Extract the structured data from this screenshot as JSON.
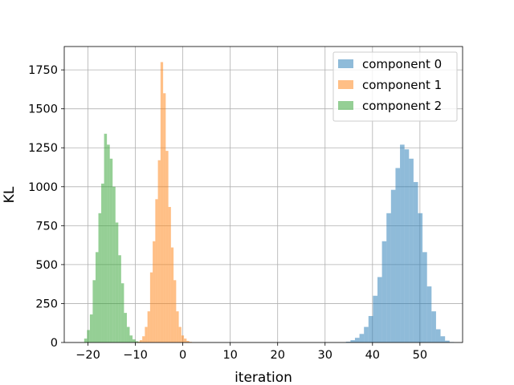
{
  "chart_data": {
    "type": "bar",
    "title": "",
    "xlabel": "iteration",
    "ylabel": "KL",
    "xlim": [
      -25,
      59
    ],
    "ylim": [
      0,
      1900
    ],
    "xticks": [
      -20,
      -10,
      0,
      10,
      20,
      30,
      40,
      50
    ],
    "xtick_labels": [
      "−20",
      "−10",
      "0",
      "10",
      "20",
      "30",
      "40",
      "50"
    ],
    "yticks": [
      0,
      250,
      500,
      750,
      1000,
      1250,
      1500,
      1750
    ],
    "ytick_labels": [
      "0",
      "250",
      "500",
      "750",
      "1000",
      "1250",
      "1500",
      "1750"
    ],
    "grid": true,
    "legend_placement": "top-right",
    "series": [
      {
        "name": "component 0",
        "color": "#1f77b4",
        "alpha": 0.5,
        "bin_width": 0.95,
        "bins": [
          [
            34.4,
            5
          ],
          [
            35.35,
            15
          ],
          [
            36.3,
            30
          ],
          [
            37.25,
            55
          ],
          [
            38.2,
            100
          ],
          [
            39.15,
            170
          ],
          [
            40.1,
            300
          ],
          [
            41.05,
            420
          ],
          [
            42.0,
            650
          ],
          [
            42.95,
            830
          ],
          [
            43.9,
            980
          ],
          [
            44.85,
            1120
          ],
          [
            45.8,
            1270
          ],
          [
            46.75,
            1240
          ],
          [
            47.7,
            1180
          ],
          [
            48.65,
            1030
          ],
          [
            49.6,
            830
          ],
          [
            50.55,
            580
          ],
          [
            51.5,
            360
          ],
          [
            52.45,
            200
          ],
          [
            53.4,
            85
          ],
          [
            54.35,
            40
          ],
          [
            55.3,
            12
          ],
          [
            56.25,
            3
          ]
        ]
      },
      {
        "name": "component 1",
        "color": "#ff7f0e",
        "alpha": 0.5,
        "bin_width": 0.55,
        "bins": [
          [
            -10.2,
            2
          ],
          [
            -9.65,
            5
          ],
          [
            -9.1,
            15
          ],
          [
            -8.55,
            40
          ],
          [
            -8.0,
            100
          ],
          [
            -7.45,
            200
          ],
          [
            -6.9,
            450
          ],
          [
            -6.35,
            650
          ],
          [
            -5.8,
            920
          ],
          [
            -5.25,
            1170
          ],
          [
            -4.7,
            1800
          ],
          [
            -4.15,
            1600
          ],
          [
            -3.6,
            1230
          ],
          [
            -3.05,
            870
          ],
          [
            -2.5,
            610
          ],
          [
            -1.95,
            400
          ],
          [
            -1.4,
            200
          ],
          [
            -0.85,
            100
          ],
          [
            -0.3,
            45
          ],
          [
            0.25,
            25
          ],
          [
            0.8,
            10
          ],
          [
            1.35,
            4
          ]
        ]
      },
      {
        "name": "component 2",
        "color": "#2ca02c",
        "alpha": 0.5,
        "bin_width": 0.6,
        "bins": [
          [
            -20.8,
            25
          ],
          [
            -20.2,
            80
          ],
          [
            -19.6,
            180
          ],
          [
            -19.0,
            400
          ],
          [
            -18.4,
            580
          ],
          [
            -17.8,
            830
          ],
          [
            -17.2,
            1020
          ],
          [
            -16.6,
            1340
          ],
          [
            -16.0,
            1270
          ],
          [
            -15.4,
            1180
          ],
          [
            -14.8,
            1000
          ],
          [
            -14.2,
            770
          ],
          [
            -13.6,
            560
          ],
          [
            -13.0,
            380
          ],
          [
            -12.4,
            190
          ],
          [
            -11.8,
            100
          ],
          [
            -11.2,
            45
          ],
          [
            -10.6,
            20
          ],
          [
            -10.0,
            8
          ],
          [
            -9.4,
            3
          ]
        ]
      }
    ]
  }
}
